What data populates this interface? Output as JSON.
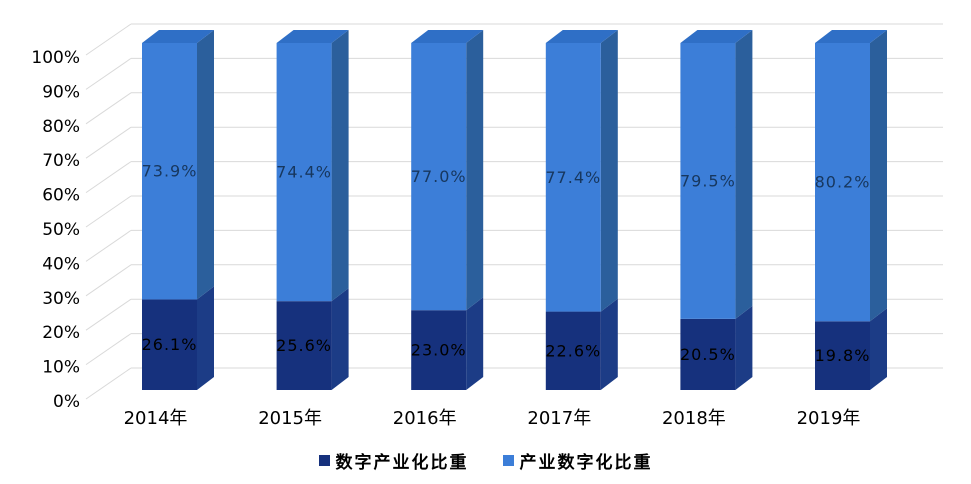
{
  "chart_data": {
    "type": "bar",
    "variant": "3d-stacked-100-percent-column",
    "title": "",
    "xlabel": "",
    "ylabel": "",
    "categories": [
      "2014年",
      "2015年",
      "2016年",
      "2017年",
      "2018年",
      "2019年"
    ],
    "series": [
      {
        "name": "数字产业化比重",
        "values": [
          26.1,
          25.6,
          23.0,
          22.6,
          20.5,
          19.8
        ],
        "labels": [
          "26.1%",
          "25.6%",
          "23.0%",
          "22.6%",
          "20.5%",
          "19.8%"
        ],
        "color": "#16317D",
        "side_color": "#1C3C86"
      },
      {
        "name": "产业数字化比重",
        "values": [
          73.9,
          74.4,
          77.0,
          77.4,
          79.5,
          80.2
        ],
        "labels": [
          "73.9%",
          "74.4%",
          "77.0%",
          "77.4%",
          "79.5%",
          "80.2%"
        ],
        "color": "#3C7ED8",
        "side_color": "#2B5F9C",
        "top_color": "#2F6FC6"
      }
    ],
    "y_ticks": [
      "0%",
      "10%",
      "20%",
      "30%",
      "40%",
      "50%",
      "60%",
      "70%",
      "80%",
      "90%",
      "100%"
    ],
    "ylim": [
      0,
      100
    ],
    "grid": true,
    "legend_position": "bottom",
    "colors": {
      "background": "#FFFFFF",
      "grid": "#D9D9D9",
      "tick_label": "#000000",
      "category_label": "#000000",
      "data_label_on_dark": "#000000",
      "data_label_on_light": "#17375E"
    }
  }
}
